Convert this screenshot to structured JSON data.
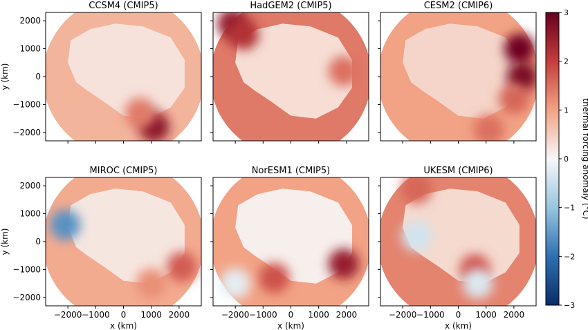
{
  "chart_data": {
    "type": "heatmap",
    "colormap": "RdBu_r",
    "colorbar": {
      "label": "thermal forcing anomaly  (°C)",
      "vmin": -3,
      "vmax": 3,
      "ticks": [
        "−3",
        "−2",
        "−1",
        "0",
        "1",
        "2",
        "3"
      ],
      "colors": [
        "#0b2d66",
        "#2f6fb1",
        "#99c6e0",
        "#f7f7f7",
        "#f2a385",
        "#c43d3c",
        "#67001f"
      ]
    },
    "axes": {
      "xlabel": "x (km)",
      "ylabel": "y (km)",
      "xlim": [
        -2800,
        2800
      ],
      "ylim": [
        -2300,
        2300
      ],
      "xticks": [
        {
          "value": -2000,
          "label": "−2000"
        },
        {
          "value": -1000,
          "label": "−1000"
        },
        {
          "value": 0,
          "label": "0"
        },
        {
          "value": 1000,
          "label": "1000"
        },
        {
          "value": 2000,
          "label": "2000"
        }
      ],
      "yticks": [
        {
          "value": 2000,
          "label": "2000"
        },
        {
          "value": 1000,
          "label": "1000"
        },
        {
          "value": 0,
          "label": "0"
        },
        {
          "value": -1000,
          "label": "−1000"
        },
        {
          "value": -2000,
          "label": "−2000"
        }
      ],
      "grid": false
    },
    "panels": [
      {
        "title": "CCSM4 (CMIP5)",
        "background_anomaly": 0.8,
        "ice_sheet_anomaly": 0.25,
        "hotspots": [
          {
            "x": 1100,
            "y": -1800,
            "anomaly": 2.6
          },
          {
            "x": 600,
            "y": -1300,
            "anomaly": 1.4
          }
        ]
      },
      {
        "title": "HadGEM2 (CMIP5)",
        "background_anomaly": 1.4,
        "ice_sheet_anomaly": 0.3,
        "hotspots": [
          {
            "x": -2100,
            "y": 1900,
            "anomaly": 2.5
          },
          {
            "x": -1700,
            "y": 1500,
            "anomaly": 2.2
          },
          {
            "x": 1900,
            "y": 200,
            "anomaly": 1.5
          }
        ]
      },
      {
        "title": "CESM2 (CMIP6)",
        "background_anomaly": 1.0,
        "ice_sheet_anomaly": 0.4,
        "hotspots": [
          {
            "x": 2200,
            "y": 1000,
            "anomaly": 2.9
          },
          {
            "x": 2300,
            "y": 0,
            "anomaly": 2.8
          },
          {
            "x": 2000,
            "y": -800,
            "anomaly": 1.6
          },
          {
            "x": 1100,
            "y": -1900,
            "anomaly": 1.5
          }
        ]
      },
      {
        "title": "MIROC (CMIP5)",
        "background_anomaly": 0.9,
        "ice_sheet_anomaly": 0.2,
        "hotspots": [
          {
            "x": -2100,
            "y": 600,
            "anomaly": -1.6
          },
          {
            "x": 2100,
            "y": -900,
            "anomaly": 1.7
          },
          {
            "x": 1000,
            "y": -1500,
            "anomaly": 1.2
          }
        ]
      },
      {
        "title": "NorESM1 (CMIP5)",
        "background_anomaly": 1.0,
        "ice_sheet_anomaly": 0.1,
        "hotspots": [
          {
            "x": 1900,
            "y": -800,
            "anomaly": 2.5
          },
          {
            "x": -600,
            "y": -1300,
            "anomaly": 1.8
          },
          {
            "x": -2000,
            "y": -1500,
            "anomaly": -0.2
          }
        ]
      },
      {
        "title": "UKESM (CMIP6)",
        "background_anomaly": 1.3,
        "ice_sheet_anomaly": 0.35,
        "hotspots": [
          {
            "x": 600,
            "y": -1000,
            "anomaly": 1.8
          },
          {
            "x": -1500,
            "y": 1900,
            "anomaly": 1.6
          },
          {
            "x": -1500,
            "y": 200,
            "anomaly": -0.4
          },
          {
            "x": 700,
            "y": -1500,
            "anomaly": -0.3
          }
        ]
      }
    ]
  }
}
